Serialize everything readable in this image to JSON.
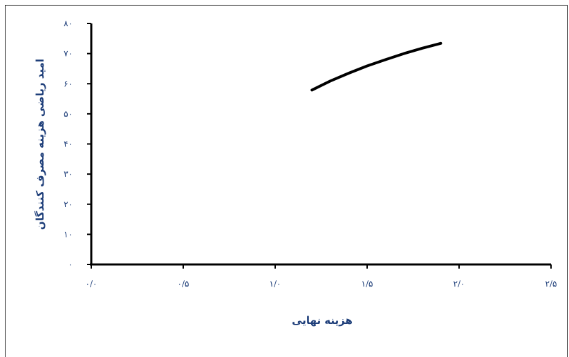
{
  "chart_data": {
    "type": "line",
    "title": "",
    "xlabel": "هزینه نهایی",
    "ylabel": "امید ریاضی هزینه مصرف کنندگان",
    "xlim": [
      0,
      2.5
    ],
    "ylim": [
      0,
      80
    ],
    "x_ticks": [
      {
        "value": 0,
        "label": "۰/۰"
      },
      {
        "value": 0.5,
        "label": "۰/۵"
      },
      {
        "value": 1.0,
        "label": "۱/۰"
      },
      {
        "value": 1.5,
        "label": "۱/۵"
      },
      {
        "value": 2.0,
        "label": "۲/۰"
      },
      {
        "value": 2.5,
        "label": "۲/۵"
      }
    ],
    "y_ticks": [
      {
        "value": 0,
        "label": "۰"
      },
      {
        "value": 10,
        "label": "۱۰"
      },
      {
        "value": 20,
        "label": "۲۰"
      },
      {
        "value": 30,
        "label": "۳۰"
      },
      {
        "value": 40,
        "label": "۴۰"
      },
      {
        "value": 50,
        "label": "۵۰"
      },
      {
        "value": 60,
        "label": "۶۰"
      },
      {
        "value": 70,
        "label": "۷۰"
      },
      {
        "value": 80,
        "label": "۸۰"
      }
    ],
    "grid": false,
    "series": [
      {
        "color": "#000000",
        "x": [
          1.2,
          1.3,
          1.4,
          1.5,
          1.6,
          1.7,
          1.8,
          1.9
        ],
        "y": [
          57.9,
          60.9,
          63.5,
          65.9,
          68.0,
          70.0,
          71.8,
          73.4
        ]
      }
    ]
  }
}
